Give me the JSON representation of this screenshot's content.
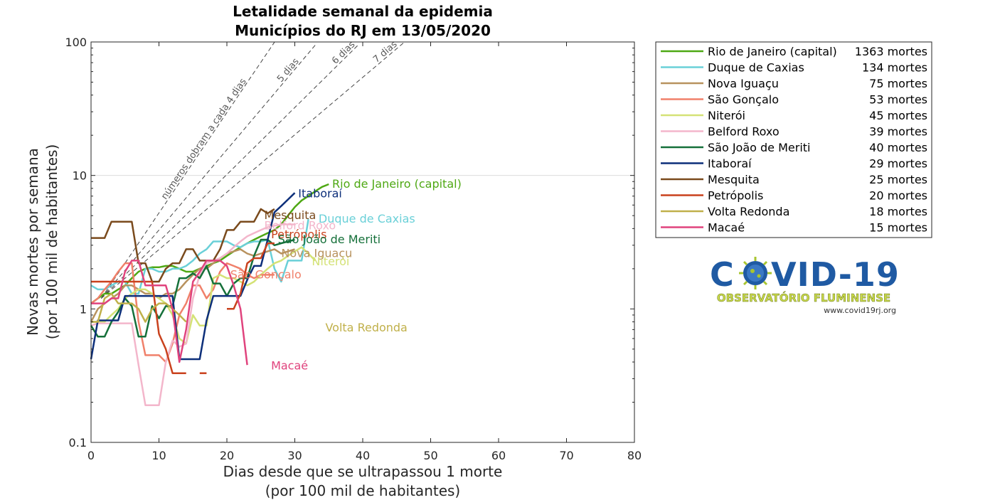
{
  "chart_data": {
    "type": "line",
    "title": [
      "Letalidade semanal da epidemia",
      "Municípios do RJ em 13/05/2020"
    ],
    "xlabel": [
      "Dias desde que se ultrapassou 1 morte",
      "(por 100 mil de habitantes)"
    ],
    "ylabel": [
      "Novas mortes por semana",
      "(por 100 mil de habitantes)"
    ],
    "xlim": [
      0,
      80
    ],
    "ylim": [
      0.1,
      100
    ],
    "yscale": "log",
    "xticks": [
      "0",
      "10",
      "20",
      "30",
      "40",
      "50",
      "60",
      "70",
      "80"
    ],
    "yticks": [
      "0.1",
      "1",
      "10",
      "100"
    ],
    "grid": "horizontal at 10",
    "legend_position": "outside-right",
    "reference_lines": [
      {
        "label": "números dobram a cada 4 dias",
        "doubling_days": 4
      },
      {
        "label": "5 dias",
        "doubling_days": 5
      },
      {
        "label": "6 dias",
        "doubling_days": 6
      },
      {
        "label": "7 dias",
        "doubling_days": 7
      }
    ],
    "series": [
      {
        "name": "Rio de Janeiro (capital)",
        "deaths": "1363 mortes",
        "color": "#4ea813",
        "x": [
          0,
          1,
          2,
          3,
          4,
          5,
          6,
          7,
          8,
          9,
          10,
          11,
          12,
          13,
          14,
          15,
          16,
          17,
          18,
          19,
          20,
          21,
          22,
          23,
          24,
          25,
          26,
          27,
          28,
          29,
          30,
          31,
          32,
          33,
          34,
          35
        ],
        "y": [
          1.1,
          1.2,
          1.3,
          1.3,
          1.4,
          1.5,
          1.7,
          1.9,
          2.0,
          2.05,
          2.05,
          2.1,
          2.1,
          2.0,
          1.9,
          1.9,
          2.0,
          2.1,
          2.2,
          2.3,
          2.5,
          2.7,
          2.9,
          3.1,
          3.3,
          3.5,
          3.7,
          3.9,
          4.3,
          5.0,
          5.8,
          6.5,
          7.0,
          7.6,
          8.2,
          8.6
        ]
      },
      {
        "name": "Duque de Caxias",
        "deaths": "134 mortes",
        "color": "#6ad0d8",
        "x": [
          0,
          1,
          2,
          3,
          4,
          5,
          6,
          7,
          8,
          9,
          10,
          11,
          12,
          13,
          14,
          15,
          16,
          17,
          18,
          19,
          20,
          21,
          22,
          23,
          24,
          25,
          26,
          27,
          28,
          29,
          30,
          31,
          32
        ],
        "y": [
          1.5,
          1.4,
          1.4,
          1.5,
          1.6,
          1.6,
          1.3,
          1.3,
          2.0,
          2.0,
          1.9,
          1.9,
          2.0,
          2.0,
          2.1,
          2.3,
          2.6,
          2.8,
          3.2,
          3.2,
          3.2,
          3.0,
          2.9,
          3.1,
          3.2,
          3.2,
          3.3,
          2.0,
          1.6,
          2.3,
          2.3,
          2.3,
          4.7
        ]
      },
      {
        "name": "Nova Iguaçu",
        "deaths": "75 mortes",
        "color": "#b8925e",
        "x": [
          0,
          1,
          2,
          3,
          4,
          5,
          6,
          7,
          8,
          9,
          10,
          11,
          12,
          13,
          14,
          15,
          16,
          17,
          18,
          19,
          20,
          21,
          22,
          23,
          24,
          25,
          26,
          27,
          28,
          29,
          30
        ],
        "y": [
          0.8,
          1.0,
          1.1,
          1.2,
          1.3,
          1.5,
          1.5,
          1.4,
          1.3,
          1.3,
          1.2,
          1.3,
          1.3,
          1.4,
          1.6,
          1.8,
          2.0,
          2.0,
          2.2,
          2.4,
          2.6,
          2.7,
          2.8,
          2.6,
          2.5,
          2.6,
          2.7,
          2.8,
          2.6,
          2.7,
          2.8
        ]
      },
      {
        "name": "São Gonçalo",
        "deaths": "53 mortes",
        "color": "#f0806a",
        "x": [
          0,
          1,
          2,
          3,
          4,
          5,
          6,
          7,
          8,
          9,
          10,
          11,
          12,
          13,
          14,
          15,
          16,
          17,
          18,
          19,
          20,
          21,
          22,
          23,
          24,
          25,
          26,
          27
        ],
        "y": [
          1.1,
          1.2,
          1.4,
          1.6,
          1.9,
          2.2,
          2.2,
          0.8,
          0.45,
          0.45,
          0.45,
          0.4,
          0.55,
          0.9,
          1.1,
          1.5,
          1.5,
          1.2,
          1.4,
          1.9,
          2.2,
          2.1,
          2.0,
          1.8,
          1.7,
          1.8,
          1.8,
          1.8
        ]
      },
      {
        "name": "Niterói",
        "deaths": "45 mortes",
        "color": "#d4e276",
        "x": [
          0,
          1,
          2,
          3,
          4,
          5,
          6,
          7,
          8,
          9,
          10,
          11,
          12,
          13,
          14,
          15,
          16,
          17,
          18,
          19,
          20,
          21,
          22,
          23,
          24,
          25,
          26,
          27,
          28,
          29,
          30,
          31,
          32,
          33
        ],
        "y": [
          0.8,
          0.8,
          0.8,
          0.9,
          1.0,
          1.2,
          1.3,
          1.4,
          1.4,
          1.3,
          1.2,
          1.1,
          0.9,
          0.6,
          0.55,
          0.9,
          0.75,
          0.75,
          1.7,
          1.8,
          1.7,
          1.7,
          1.6,
          1.5,
          1.6,
          1.8,
          2.0,
          2.2,
          2.3,
          2.5,
          2.7,
          2.9,
          2.6,
          2.3
        ]
      },
      {
        "name": "Belford Roxo",
        "deaths": "39 mortes",
        "color": "#f3b6cb",
        "x": [
          0,
          1,
          2,
          3,
          4,
          5,
          6,
          7,
          8,
          9,
          10,
          11,
          12,
          13,
          14,
          15,
          16,
          17,
          18,
          19,
          20,
          21,
          22,
          23,
          24,
          25,
          26,
          27,
          28,
          29,
          30
        ],
        "y": [
          0.75,
          0.78,
          0.78,
          0.78,
          0.78,
          0.78,
          0.78,
          0.38,
          0.19,
          0.19,
          0.19,
          0.4,
          0.58,
          0.52,
          0.55,
          1.2,
          1.8,
          2.2,
          2.3,
          2.4,
          2.6,
          2.9,
          3.2,
          3.5,
          3.7,
          3.9,
          4.1,
          4.2,
          4.3,
          4.3,
          4.3
        ]
      },
      {
        "name": "São João de Meriti",
        "deaths": "40 mortes",
        "color": "#15703a",
        "x": [
          0,
          1,
          2,
          3,
          4,
          5,
          6,
          7,
          8,
          9,
          10,
          11,
          12,
          13,
          14,
          15,
          16,
          17,
          18,
          19,
          20,
          21,
          22,
          23,
          24,
          25,
          26,
          27,
          28,
          29,
          30
        ],
        "y": [
          0.75,
          0.62,
          0.62,
          0.8,
          0.95,
          1.2,
          1.05,
          0.62,
          0.62,
          1.05,
          0.85,
          1.05,
          1.05,
          1.7,
          1.7,
          1.85,
          1.7,
          2.1,
          1.55,
          1.55,
          1.25,
          1.55,
          1.7,
          1.7,
          2.5,
          3.3,
          3.3,
          3.0,
          3.1,
          3.2,
          3.3
        ]
      },
      {
        "name": "Itaboraí",
        "deaths": "29 mortes",
        "color": "#0d2f7a",
        "x": [
          0,
          1,
          2,
          3,
          4,
          5,
          6,
          7,
          8,
          9,
          10,
          11,
          12,
          13,
          14,
          15,
          16,
          17,
          18,
          19,
          20,
          21,
          22,
          23,
          24,
          25,
          26,
          27,
          28,
          29,
          30
        ],
        "y": [
          0.42,
          0.82,
          0.82,
          0.82,
          0.82,
          1.25,
          1.25,
          1.25,
          1.25,
          1.25,
          1.25,
          1.25,
          1.25,
          0.42,
          0.42,
          0.42,
          0.42,
          0.82,
          1.25,
          1.25,
          1.25,
          1.25,
          1.25,
          1.65,
          2.1,
          2.1,
          3.3,
          5.3,
          5.9,
          6.6,
          7.4
        ]
      },
      {
        "name": "Mesquita",
        "deaths": "25 mortes",
        "color": "#7a4a1c",
        "x": [
          0,
          1,
          2,
          3,
          4,
          5,
          6,
          7,
          8,
          9,
          10,
          11,
          12,
          13,
          14,
          15,
          16,
          17,
          18,
          19,
          20,
          21,
          22,
          23,
          24,
          25,
          26,
          27
        ],
        "y": [
          3.4,
          3.4,
          3.4,
          4.5,
          4.5,
          4.5,
          4.5,
          2.2,
          2.2,
          1.6,
          1.6,
          2.0,
          2.2,
          2.2,
          2.8,
          2.8,
          2.3,
          2.3,
          2.3,
          2.8,
          3.9,
          3.9,
          4.5,
          4.5,
          4.5,
          5.6,
          5.2,
          5.6
        ]
      },
      {
        "name": "Petrópolis",
        "deaths": "20 mortes",
        "color": "#c9411d",
        "x": [
          0,
          1,
          2,
          3,
          4,
          5,
          6,
          7,
          8,
          9,
          10,
          11,
          12,
          13,
          14,
          15,
          16,
          17,
          18,
          19,
          20,
          21,
          22,
          23,
          24,
          25,
          26,
          27
        ],
        "y": [
          1.6,
          1.6,
          1.6,
          1.6,
          1.6,
          1.6,
          1.6,
          1.6,
          1.6,
          1.6,
          0.65,
          0.5,
          0.33,
          0.33,
          0.33,
          null,
          0.33,
          0.33,
          null,
          null,
          1.0,
          1.0,
          1.3,
          2.2,
          2.4,
          2.4,
          3.1,
          3.1
        ]
      },
      {
        "name": "Volta Redonda",
        "deaths": "18 mortes",
        "color": "#c0b04a",
        "x": [
          0,
          1,
          2,
          3,
          4,
          5,
          6,
          7,
          8,
          9,
          10,
          11,
          12,
          13,
          14
        ],
        "y": [
          0.8,
          0.8,
          1.2,
          1.3,
          1.1,
          1.1,
          1.1,
          1.0,
          0.8,
          1.0,
          1.1,
          1.1,
          1.0,
          0.9,
          0.8
        ]
      },
      {
        "name": "Macaé",
        "deaths": "15 mortes",
        "color": "#e0437d",
        "x": [
          0,
          1,
          2,
          3,
          4,
          5,
          6,
          7,
          8,
          9,
          10,
          11,
          12,
          13,
          14,
          15,
          16,
          17,
          18,
          19,
          20,
          21,
          22,
          23
        ],
        "y": [
          1.1,
          1.1,
          1.1,
          1.2,
          1.2,
          1.9,
          2.3,
          2.3,
          1.5,
          1.5,
          1.5,
          1.5,
          1.0,
          0.4,
          0.7,
          1.6,
          1.9,
          2.3,
          2.3,
          2.3,
          2.1,
          1.5,
          1.0,
          0.38
        ]
      }
    ],
    "annotations": [
      {
        "text": "Rio de Janeiro (capital)",
        "x": 35.5,
        "y": 8.6,
        "color": "#4ea813"
      },
      {
        "text": "Itaboraí",
        "x": 30.5,
        "y": 7.3,
        "color": "#0d2f7a"
      },
      {
        "text": "Duque de Caxias",
        "x": 33.5,
        "y": 4.7,
        "color": "#6ad0d8"
      },
      {
        "text": "Mesquita",
        "x": 25.5,
        "y": 5.0,
        "color": "#7a4a1c"
      },
      {
        "text": "Belford Roxo",
        "x": 25.5,
        "y": 4.2,
        "color": "#f3b6cb"
      },
      {
        "text": "Petrópolis",
        "x": 26.5,
        "y": 3.6,
        "color": "#c9411d"
      },
      {
        "text": "São João de Meriti",
        "x": 27.5,
        "y": 3.3,
        "color": "#15703a"
      },
      {
        "text": "Nova Iguaçu",
        "x": 28.0,
        "y": 2.6,
        "color": "#b8925e"
      },
      {
        "text": "Niterói",
        "x": 32.5,
        "y": 2.25,
        "color": "#d4e276"
      },
      {
        "text": "São Gonçalo",
        "x": 20.5,
        "y": 1.8,
        "color": "#f0806a"
      },
      {
        "text": "Volta Redonda",
        "x": 34.5,
        "y": 0.72,
        "color": "#c0b04a"
      },
      {
        "text": "Macaé",
        "x": 26.5,
        "y": 0.375,
        "color": "#e0437d"
      }
    ]
  },
  "logo": {
    "main_left": "C",
    "main_right": "VID-19",
    "subtitle": "OBSERVATÓRIO FLUMINENSE",
    "url": "www.covid19rj.org"
  }
}
